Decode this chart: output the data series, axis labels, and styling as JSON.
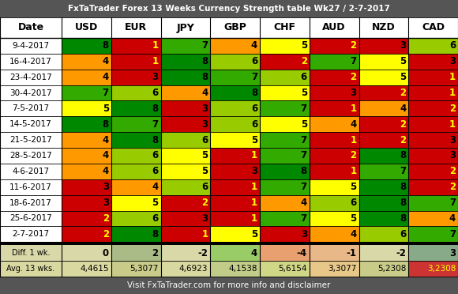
{
  "title": "FxTaTrader Forex 13 Weeks Currency Strength table Wk27 / 2-7-2017",
  "footer": "Visit FxTaTrader.com for more info and disclaimer",
  "columns": [
    "Date",
    "USD",
    "EUR",
    "JPY",
    "GBP",
    "CHF",
    "AUD",
    "NZD",
    "CAD"
  ],
  "rows": [
    {
      "date": "9-4-2017",
      "values": [
        8,
        1,
        7,
        4,
        5,
        2,
        3,
        6
      ]
    },
    {
      "date": "16-4-2017",
      "values": [
        4,
        1,
        8,
        6,
        2,
        7,
        5,
        3
      ]
    },
    {
      "date": "23-4-2017",
      "values": [
        4,
        3,
        8,
        7,
        6,
        2,
        5,
        1
      ]
    },
    {
      "date": "30-4-2017",
      "values": [
        7,
        6,
        4,
        8,
        5,
        3,
        2,
        1
      ]
    },
    {
      "date": "7-5-2017",
      "values": [
        5,
        8,
        3,
        6,
        7,
        1,
        4,
        2
      ]
    },
    {
      "date": "14-5-2017",
      "values": [
        8,
        7,
        3,
        6,
        5,
        4,
        2,
        1
      ]
    },
    {
      "date": "21-5-2017",
      "values": [
        4,
        8,
        6,
        5,
        7,
        1,
        2,
        3
      ]
    },
    {
      "date": "28-5-2017",
      "values": [
        4,
        6,
        5,
        1,
        7,
        2,
        8,
        3
      ]
    },
    {
      "date": "4-6-2017",
      "values": [
        4,
        6,
        5,
        3,
        8,
        1,
        7,
        2
      ]
    },
    {
      "date": "11-6-2017",
      "values": [
        3,
        4,
        6,
        1,
        7,
        5,
        8,
        2
      ]
    },
    {
      "date": "18-6-2017",
      "values": [
        3,
        5,
        2,
        1,
        4,
        6,
        8,
        7
      ]
    },
    {
      "date": "25-6-2017",
      "values": [
        2,
        6,
        3,
        1,
        7,
        5,
        8,
        4
      ]
    },
    {
      "date": "2-7-2017",
      "values": [
        2,
        8,
        1,
        5,
        3,
        4,
        6,
        7
      ]
    }
  ],
  "diff_row": {
    "label": "Diff. 1 wk.",
    "values": [
      0,
      2,
      -2,
      4,
      -4,
      -1,
      -2,
      3
    ]
  },
  "avg_row": {
    "label": "Avg. 13 wks.",
    "values": [
      "4,4615",
      "5,3077",
      "4,6923",
      "4,1538",
      "5,6154",
      "3,3077",
      "5,2308",
      "3,2308"
    ]
  },
  "color_map": {
    "1": "#cc0000",
    "2": "#cc0000",
    "3": "#cc0000",
    "4": "#ff9900",
    "5": "#ffff00",
    "6": "#99cc00",
    "7": "#33aa00",
    "8": "#008800",
    "header_bg": "#555555",
    "header_text": "#ffffff",
    "date_col_bg": "#ffffff",
    "footer_bg": "#555555",
    "footer_text": "#ffffff",
    "title_bg": "#555555",
    "title_text": "#ffffff"
  },
  "value_text_colors": {
    "1": "#ffff00",
    "2": "#ffff00",
    "3": "#000000",
    "4": "#000000",
    "5": "#000000",
    "6": "#000000",
    "7": "#000000",
    "8": "#000000"
  },
  "diff_bg_colors": {
    "-4": "#e8a070",
    "-2": "#d8d8a8",
    "-1": "#e8b888",
    "0": "#d8d8a8",
    "2": "#aabb88",
    "3": "#88aa88",
    "4": "#99cc66"
  },
  "avg_bg_colors": {
    "USD": "#d8d8a0",
    "EUR": "#c8cc88",
    "JPY": "#d8d8a0",
    "GBP": "#c0cc88",
    "CHF": "#d0d888",
    "AUD": "#e8c888",
    "NZD": "#c8cc88",
    "CAD": "#cc3333"
  }
}
